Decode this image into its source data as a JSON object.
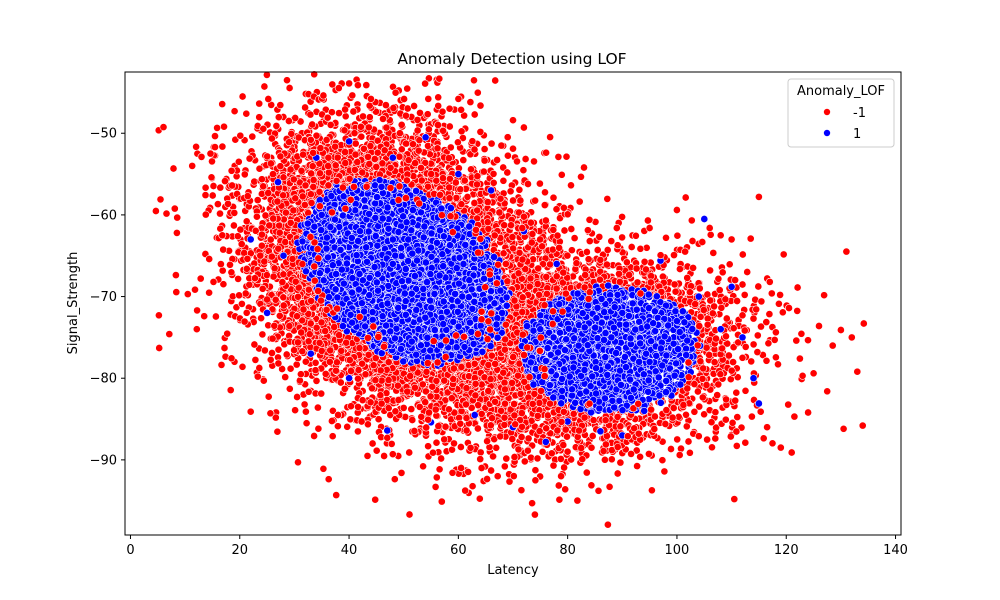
{
  "chart_data": {
    "type": "scatter",
    "title": "Anomaly Detection using LOF",
    "xlabel": "Latency",
    "ylabel": "Signal_Strength",
    "xlim": [
      -1,
      141
    ],
    "ylim": [
      -99.2,
      -42.5
    ],
    "xticks": [
      0,
      20,
      40,
      60,
      80,
      100,
      120,
      140
    ],
    "yticks": [
      -90,
      -80,
      -70,
      -60,
      -50
    ],
    "xtick_labels": [
      "0",
      "20",
      "40",
      "60",
      "80",
      "100",
      "120",
      "140"
    ],
    "ytick_labels": [
      "−90",
      "−80",
      "−70",
      "−60",
      "−50"
    ],
    "grid": false,
    "legend": {
      "title": "Anomaly_LOF",
      "placement": "top-right",
      "entries": [
        {
          "label": "-1",
          "color": "#ff0000"
        },
        {
          "label": "1",
          "color": "#0000ff"
        }
      ]
    },
    "series": [
      {
        "label": "-1",
        "color": "#ff0000",
        "approx_count": 2600,
        "points": [
          [
            5.5,
            -58.1
          ],
          [
            5.2,
            -72.3
          ],
          [
            7.1,
            -74.6
          ],
          [
            8.5,
            -62.2
          ],
          [
            10.5,
            -69.7
          ],
          [
            11.3,
            -54.0
          ],
          [
            12.2,
            -71.7
          ],
          [
            13.0,
            -52.9
          ],
          [
            13.5,
            -72.4
          ],
          [
            14.4,
            -65.4
          ],
          [
            15.2,
            -68.2
          ],
          [
            16.8,
            -62.5
          ],
          [
            17.2,
            -76.3
          ],
          [
            18.5,
            -54.6
          ],
          [
            20.1,
            -50.3
          ],
          [
            20.5,
            -78.6
          ],
          [
            21.8,
            -53.1
          ],
          [
            22.0,
            -84.1
          ],
          [
            23.3,
            -79.8
          ],
          [
            24.4,
            -80.3
          ],
          [
            25.6,
            -84.3
          ],
          [
            26.7,
            -49.1
          ],
          [
            29.0,
            -48.5
          ],
          [
            30.5,
            -82.3
          ],
          [
            33.0,
            -50.8
          ],
          [
            34.3,
            -83.6
          ],
          [
            36.1,
            -48.1
          ],
          [
            37.0,
            -87.1
          ],
          [
            38.0,
            -84.5
          ],
          [
            40.0,
            -43.9
          ],
          [
            42.3,
            -85.3
          ],
          [
            44.0,
            -45.8
          ],
          [
            44.3,
            -88.0
          ],
          [
            47.0,
            -87.3
          ],
          [
            48.0,
            -89.3
          ],
          [
            49.6,
            -91.6
          ],
          [
            51.0,
            -89.1
          ],
          [
            54.5,
            -45.8
          ],
          [
            56.0,
            -87.9
          ],
          [
            58.4,
            -47.0
          ],
          [
            60.0,
            -45.8
          ],
          [
            60.5,
            -91.0
          ],
          [
            63.0,
            -47.7
          ],
          [
            64.0,
            -89.9
          ],
          [
            66.0,
            -91.3
          ],
          [
            67.2,
            -92.0
          ],
          [
            68.5,
            -90.8
          ],
          [
            70.0,
            -48.4
          ],
          [
            72.0,
            -49.3
          ],
          [
            73.5,
            -95.3
          ],
          [
            74.0,
            -96.7
          ],
          [
            74.1,
            -92.5
          ],
          [
            77.1,
            -89.2
          ],
          [
            78.3,
            -52.9
          ],
          [
            78.8,
            -92.0
          ],
          [
            80.0,
            -89.0
          ],
          [
            83.0,
            -54.2
          ],
          [
            84.0,
            -60.6
          ],
          [
            87.0,
            -88.1
          ],
          [
            89.0,
            -61.6
          ],
          [
            91.0,
            -87.1
          ],
          [
            93.0,
            -86.8
          ],
          [
            95.0,
            -61.6
          ],
          [
            98.0,
            -62.8
          ],
          [
            100.0,
            -59.4
          ],
          [
            100.5,
            -89.4
          ],
          [
            101.5,
            -64.5
          ],
          [
            103.0,
            -86.8
          ],
          [
            104.0,
            -87.1
          ],
          [
            106.0,
            -61.6
          ],
          [
            108.0,
            -62.5
          ],
          [
            110.0,
            -63.0
          ],
          [
            110.5,
            -94.8
          ],
          [
            112.5,
            -87.9
          ],
          [
            113.5,
            -62.9
          ],
          [
            115.0,
            -57.8
          ],
          [
            116.5,
            -86.0
          ],
          [
            119.0,
            -88.5
          ],
          [
            120.5,
            -71.4
          ],
          [
            121.0,
            -89.1
          ],
          [
            121.5,
            -84.7
          ],
          [
            122.5,
            -77.6
          ],
          [
            123.0,
            -79.7
          ],
          [
            124.0,
            -84.2
          ],
          [
            125.0,
            -79.4
          ],
          [
            126.0,
            -73.6
          ],
          [
            127.5,
            -81.6
          ],
          [
            128.5,
            -76.0
          ],
          [
            130.0,
            -74.1
          ],
          [
            130.5,
            -86.2
          ],
          [
            131.0,
            -64.5
          ],
          [
            132.0,
            -75.0
          ],
          [
            133.0,
            -79.2
          ],
          [
            134.0,
            -85.8
          ],
          [
            134.2,
            -73.3
          ],
          [
            118.5,
            -78.3
          ],
          [
            117.0,
            -68.2
          ],
          [
            114.0,
            -72.7
          ],
          [
            112.0,
            -77.5
          ],
          [
            109.0,
            -82.6
          ]
        ]
      },
      {
        "label": "1",
        "color": "#0000ff",
        "approx_count": 12000,
        "points": [
          [
            28.0,
            -65.0
          ],
          [
            35.0,
            -60.0
          ],
          [
            42.0,
            -62.0
          ],
          [
            48.0,
            -66.0
          ],
          [
            55.0,
            -64.0
          ],
          [
            62.0,
            -68.0
          ],
          [
            68.0,
            -72.0
          ],
          [
            75.0,
            -74.0
          ],
          [
            82.0,
            -76.0
          ],
          [
            88.0,
            -75.0
          ],
          [
            95.0,
            -78.0
          ],
          [
            100.0,
            -73.0
          ],
          [
            104.0,
            -70.0
          ],
          [
            108.0,
            -74.0
          ],
          [
            112.0,
            -75.0
          ],
          [
            105.0,
            -60.5
          ],
          [
            97.0,
            -65.6
          ],
          [
            110.0,
            -68.8
          ],
          [
            114.0,
            -80.0
          ],
          [
            115.0,
            -83.1
          ],
          [
            98.0,
            -81.7
          ],
          [
            94.0,
            -84.0
          ],
          [
            90.0,
            -87.0
          ],
          [
            86.0,
            -86.5
          ],
          [
            80.0,
            -85.3
          ],
          [
            76.0,
            -87.8
          ],
          [
            70.0,
            -86.0
          ],
          [
            63.0,
            -84.5
          ],
          [
            55.0,
            -85.4
          ],
          [
            47.0,
            -86.4
          ],
          [
            40.0,
            -80.0
          ],
          [
            33.0,
            -77.0
          ],
          [
            25.0,
            -72.0
          ],
          [
            22.0,
            -63.0
          ],
          [
            27.0,
            -56.0
          ],
          [
            34.0,
            -53.0
          ],
          [
            40.0,
            -51.0
          ],
          [
            48.0,
            -53.0
          ],
          [
            54.0,
            -50.5
          ],
          [
            60.0,
            -55.0
          ],
          [
            66.0,
            -57.0
          ],
          [
            72.0,
            -62.0
          ],
          [
            78.0,
            -66.0
          ],
          [
            84.0,
            -70.0
          ],
          [
            90.0,
            -72.0
          ]
        ]
      }
    ]
  }
}
